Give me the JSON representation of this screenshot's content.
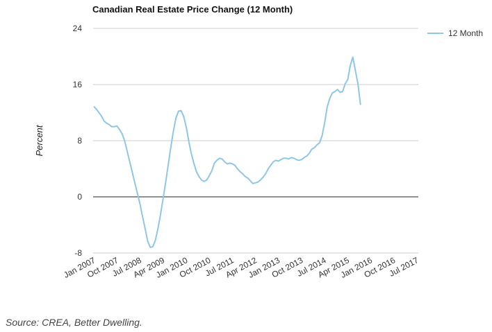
{
  "chart_data": {
    "type": "line",
    "title": "Canadian Real Estate Price Change (12 Month)",
    "ylabel": "Percent",
    "xlabel": "",
    "ylim": [
      -8,
      24
    ],
    "yticks": [
      24,
      16,
      8,
      0,
      -8
    ],
    "x_tick_labels": [
      "Jan 2007",
      "Oct 2007",
      "Jul 2008",
      "Apr 2009",
      "Jan 2010",
      "Oct 2010",
      "Jul 2011",
      "Apr 2012",
      "Jan 2013",
      "Oct 2013",
      "Jul 2014",
      "Apr 2015",
      "Jan 2016",
      "Oct 2016",
      "Jul 2017"
    ],
    "x_tick_months": [
      0,
      9,
      18,
      27,
      36,
      45,
      54,
      63,
      72,
      81,
      90,
      99,
      108,
      117,
      126
    ],
    "legend": "top-right",
    "series": [
      {
        "name": "12 Month",
        "color": "#8ec6e8",
        "start": "Jan 2007",
        "frequency": "monthly",
        "values": [
          12.9,
          12.5,
          12.0,
          11.5,
          10.8,
          10.5,
          10.3,
          10.0,
          10.0,
          10.1,
          9.6,
          9.0,
          8.0,
          6.5,
          5.0,
          3.5,
          2.0,
          0.5,
          -1.0,
          -2.8,
          -4.5,
          -6.3,
          -7.2,
          -7.1,
          -6.2,
          -4.5,
          -2.5,
          -0.3,
          2.0,
          4.5,
          7.0,
          9.3,
          11.2,
          12.2,
          12.3,
          11.5,
          10.0,
          8.0,
          6.2,
          4.8,
          3.6,
          2.9,
          2.4,
          2.2,
          2.4,
          3.0,
          3.7,
          4.8,
          5.2,
          5.5,
          5.4,
          5.0,
          4.7,
          4.8,
          4.7,
          4.5,
          4.0,
          3.6,
          3.3,
          2.9,
          2.7,
          2.3,
          1.9,
          2.0,
          2.1,
          2.4,
          2.8,
          3.3,
          4.0,
          4.5,
          5.0,
          5.2,
          5.1,
          5.3,
          5.5,
          5.5,
          5.4,
          5.6,
          5.5,
          5.3,
          5.2,
          5.3,
          5.6,
          5.8,
          6.2,
          6.8,
          7.0,
          7.4,
          7.7,
          8.7,
          10.5,
          12.8,
          14.0,
          14.8,
          15.0,
          15.3,
          14.9,
          15.0,
          16.1,
          16.7,
          18.7,
          19.9,
          18.0,
          16.1,
          13.1
        ]
      }
    ]
  },
  "source_text": "Source: CREA, Better Dwelling."
}
